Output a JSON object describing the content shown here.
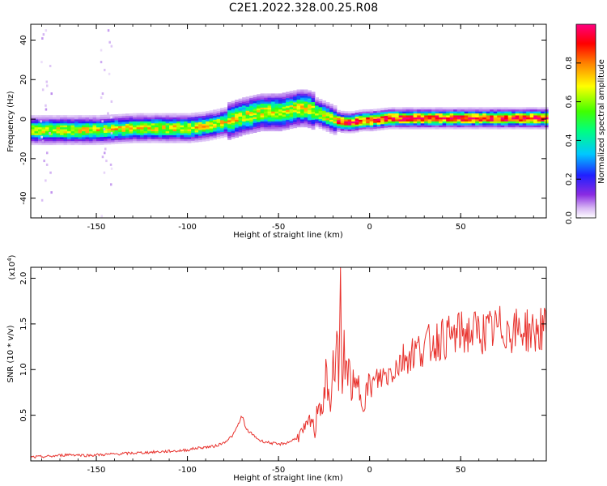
{
  "title": "C2E1.2022.328.00.25.R08",
  "chart_data": [
    {
      "type": "heatmap",
      "title": "",
      "xlabel": "Height of straight line (km)",
      "ylabel": "Frequency (Hz)",
      "xlim": [
        -186,
        97
      ],
      "ylim": [
        -50,
        48
      ],
      "xticks": [
        -150,
        -100,
        -50,
        0,
        50
      ],
      "yticks": [
        -40,
        -20,
        0,
        20,
        40
      ],
      "colorbar": {
        "label": "Normalized spectral amplitude",
        "range": [
          0,
          1
        ],
        "ticks": [
          "0.0",
          "0.2",
          "0.4",
          "0.6",
          "0.8"
        ],
        "colors": [
          "#ffffff",
          "#c8a0f0",
          "#8a2be2",
          "#2020ff",
          "#00c8ff",
          "#00ff80",
          "#40ff00",
          "#ffff00",
          "#ff8000",
          "#ff0000",
          "#ff0080"
        ]
      },
      "ridge": {
        "x": [
          -186,
          -170,
          -150,
          -130,
          -110,
          -100,
          -90,
          -80,
          -70,
          -60,
          -50,
          -40,
          -35,
          -30,
          -25,
          -20,
          -15,
          -10,
          -5,
          0,
          10,
          30,
          50,
          70,
          97
        ],
        "y": [
          -6,
          -6,
          -6,
          -5,
          -5,
          -5,
          -4,
          -2,
          1,
          3,
          3,
          5,
          5,
          3,
          1,
          -1,
          -2,
          -2,
          -1,
          -1,
          0,
          0,
          0,
          0,
          0
        ]
      }
    },
    {
      "type": "line",
      "title": "",
      "xlabel": "Height of straight line (km)",
      "ylabel": "SNR (10 * v/v)",
      "multiplier_label": "(x10",
      "multiplier_exp": "4",
      "multiplier_close": ")",
      "xlim": [
        -186,
        97
      ],
      "ylim": [
        0,
        2.12
      ],
      "xticks": [
        -150,
        -100,
        -50,
        0,
        50
      ],
      "yticks": [
        "0.5",
        "1.0",
        "1.5",
        "2.0"
      ],
      "series": [
        {
          "color": "#e8322d",
          "x": [
            -186,
            -175,
            -165,
            -155,
            -145,
            -135,
            -125,
            -115,
            -105,
            -100,
            -95,
            -90,
            -85,
            -80,
            -75,
            -72,
            -70,
            -68,
            -65,
            -60,
            -55,
            -50,
            -45,
            -40,
            -35,
            -32,
            -30,
            -28,
            -26,
            -24,
            -22,
            -20,
            -19,
            -18,
            -17,
            -16,
            -15,
            -14,
            -12,
            -10,
            -8,
            -6,
            -4,
            -2,
            0,
            5,
            10,
            15,
            20,
            25,
            30,
            35,
            40,
            45,
            50,
            55,
            60,
            65,
            70,
            75,
            80,
            85,
            90,
            95,
            97
          ],
          "y": [
            0.04,
            0.05,
            0.07,
            0.06,
            0.07,
            0.08,
            0.09,
            0.1,
            0.11,
            0.12,
            0.14,
            0.15,
            0.16,
            0.2,
            0.28,
            0.4,
            0.5,
            0.35,
            0.3,
            0.22,
            0.2,
            0.18,
            0.2,
            0.25,
            0.35,
            0.45,
            0.3,
            0.7,
            0.55,
            0.9,
            0.6,
            1.0,
            0.8,
            1.8,
            0.7,
            2.1,
            0.6,
            1.2,
            1.0,
            0.85,
            0.75,
            0.8,
            0.7,
            0.75,
            0.8,
            0.9,
            0.95,
            1.05,
            1.15,
            1.2,
            1.25,
            1.3,
            1.35,
            1.35,
            1.4,
            1.4,
            1.42,
            1.4,
            1.45,
            1.45,
            1.42,
            1.45,
            1.4,
            1.45,
            1.4
          ]
        }
      ]
    }
  ]
}
